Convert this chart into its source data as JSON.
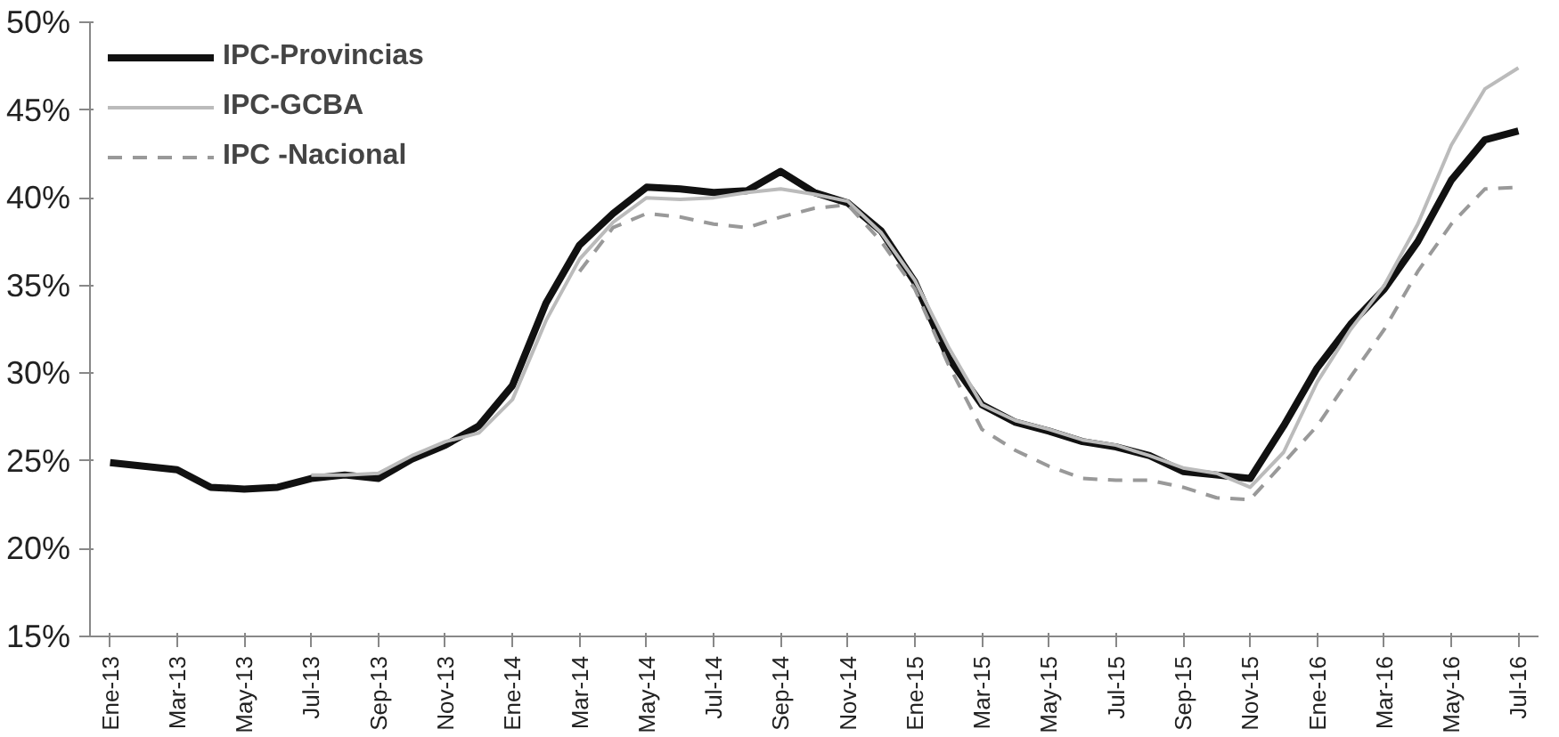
{
  "chart_data": {
    "type": "line",
    "categories": [
      "Ene-13",
      null,
      "Mar-13",
      null,
      "May-13",
      null,
      "Jul-13",
      null,
      "Sep-13",
      null,
      "Nov-13",
      null,
      "Ene-14",
      null,
      "Mar-14",
      null,
      "May-14",
      null,
      "Jul-14",
      null,
      "Sep-14",
      null,
      "Nov-14",
      null,
      "Ene-15",
      null,
      "Mar-15",
      null,
      "May-15",
      null,
      "Jul-15",
      null,
      "Sep-15",
      null,
      "Nov-15",
      null,
      "Ene-16",
      null,
      "Mar-16",
      null,
      "May-16",
      null,
      "Jul-16"
    ],
    "series": [
      {
        "name": "IPC-Provincias",
        "color": "#111111",
        "line_style": "solid",
        "values": [
          24.9,
          24.7,
          24.5,
          23.5,
          23.4,
          23.5,
          24.0,
          24.2,
          24.0,
          25.1,
          25.9,
          27.0,
          29.3,
          34.0,
          37.3,
          39.1,
          40.6,
          40.5,
          40.3,
          40.4,
          41.5,
          40.3,
          39.7,
          38.1,
          35.2,
          30.9,
          28.2,
          27.2,
          26.7,
          26.1,
          25.8,
          25.3,
          24.4,
          24.2,
          24.0,
          27.0,
          30.3,
          32.8,
          34.8,
          37.5,
          41.0,
          43.3,
          43.8
        ]
      },
      {
        "name": "IPC-GCBA",
        "color": "#bbbbbb",
        "line_style": "solid",
        "values": [
          null,
          null,
          null,
          null,
          null,
          null,
          24.2,
          24.2,
          24.3,
          25.3,
          26.1,
          26.6,
          28.5,
          33.0,
          36.5,
          38.6,
          40.0,
          39.9,
          40.0,
          40.3,
          40.5,
          40.2,
          39.8,
          38.0,
          35.3,
          31.5,
          28.2,
          27.3,
          26.8,
          26.2,
          25.9,
          25.3,
          24.6,
          24.3,
          23.5,
          25.5,
          29.5,
          32.5,
          35.0,
          38.5,
          43.0,
          46.2,
          47.4
        ]
      },
      {
        "name": "IPC -Nacional",
        "color": "#999999",
        "line_style": "dashed",
        "values": [
          null,
          null,
          null,
          null,
          null,
          null,
          null,
          null,
          null,
          null,
          null,
          null,
          null,
          null,
          35.8,
          38.3,
          39.1,
          38.9,
          38.5,
          38.3,
          38.9,
          39.4,
          39.6,
          37.5,
          34.8,
          30.5,
          26.8,
          25.6,
          24.7,
          24.0,
          23.9,
          23.9,
          23.5,
          22.9,
          22.8,
          24.9,
          27.0,
          29.8,
          32.5,
          35.8,
          38.5,
          40.5,
          40.6
        ]
      }
    ],
    "ylim": [
      15,
      50
    ],
    "yticks": [
      {
        "value": 15,
        "label": "15%"
      },
      {
        "value": 20,
        "label": "20%"
      },
      {
        "value": 25,
        "label": "25%"
      },
      {
        "value": 30,
        "label": "30%"
      },
      {
        "value": 35,
        "label": "35%"
      },
      {
        "value": 40,
        "label": "40%"
      },
      {
        "value": 45,
        "label": "45%"
      },
      {
        "value": 50,
        "label": "50%"
      }
    ],
    "grid": false,
    "legend": "top left"
  }
}
